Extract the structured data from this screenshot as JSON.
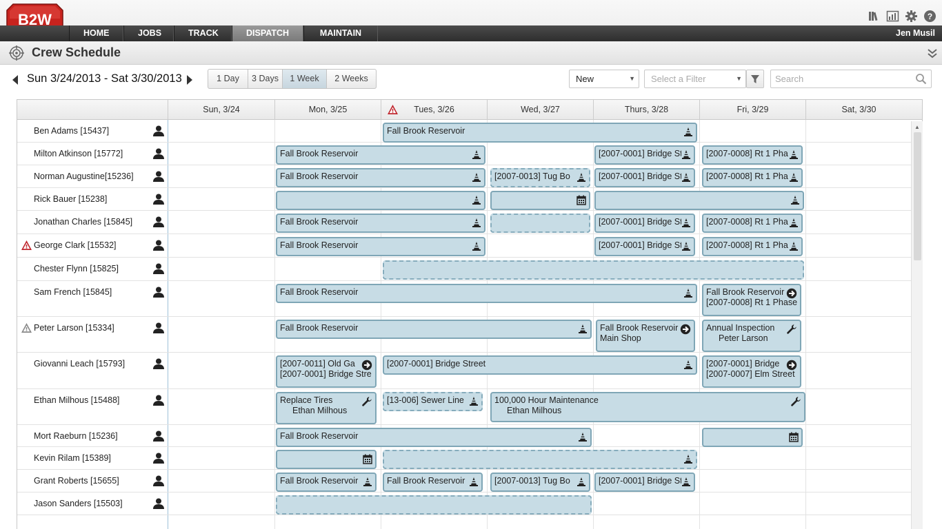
{
  "app": {
    "logo_text": "B2W",
    "nav_tabs": [
      {
        "label": "HOME"
      },
      {
        "label": "JOBS"
      },
      {
        "label": "TRACK"
      },
      {
        "label": "DISPATCH"
      },
      {
        "label": "MAINTAIN"
      }
    ],
    "active_tab": "DISPATCH",
    "user_name": "Jen Musil",
    "top_icons": [
      "library-icon",
      "chart-icon",
      "gear-icon",
      "help-icon"
    ]
  },
  "page": {
    "title": "Crew Schedule"
  },
  "controls": {
    "date_range": "Sun 3/24/2013 - Sat 3/30/2013",
    "view_options": [
      "1 Day",
      "3 Days",
      "1 Week",
      "2 Weeks"
    ],
    "selected_view": "1 Week",
    "status_select": "New",
    "filter_placeholder": "Select a Filter",
    "search_placeholder": "Search"
  },
  "columns": [
    "Sun, 3/24",
    "Mon, 3/25",
    "Tues, 3/26",
    "Wed, 3/27",
    "Thurs, 3/28",
    "Fri, 3/29",
    "Sat, 3/30"
  ],
  "column_warning": "Tues, 3/26",
  "colors": {
    "job_fill": "#c7dce5",
    "job_border": "#7fa6b6",
    "nav_bg": "#3a3a3a",
    "warning_red": "#c0262d",
    "logo_red": "#c8231e"
  },
  "crew": [
    {
      "name": "Ben Adams [15437]",
      "warning": "none",
      "jobs": [
        {
          "text": "Fall Brook Reservoir",
          "icon": "cone-icon"
        },
        {
          "text": "",
          "icon": "calendar-icon"
        }
      ]
    },
    {
      "name": "Milton Atkinson [15772]",
      "warning": "none",
      "jobs": [
        {
          "text": "Fall Brook Reservoir",
          "icon": "cone-icon"
        },
        {
          "text": "[2007-0001] Bridge St",
          "icon": "cone-icon"
        },
        {
          "text": "[2007-0008] Rt 1 Pha",
          "icon": "cone-icon"
        }
      ]
    },
    {
      "name": "Norman Augustine[15236]",
      "warning": "none",
      "jobs": [
        {
          "text": "Fall Brook Reservoir",
          "icon": "cone-icon"
        },
        {
          "text": "[2007-0013] Tug Bo",
          "icon": "cone-icon"
        },
        {
          "text": "[2007-0001] Bridge St",
          "icon": "cone-icon"
        },
        {
          "text": "[2007-0008] Rt 1 Pha",
          "icon": "cone-icon"
        }
      ]
    },
    {
      "name": "Rick Bauer [15238]",
      "warning": "none",
      "jobs": [
        {
          "text": "",
          "icon": "cone-icon"
        },
        {
          "text": "",
          "icon": "calendar-icon"
        },
        {
          "text": "",
          "icon": "cone-icon"
        }
      ]
    },
    {
      "name": "Jonathan Charles [15845]",
      "warning": "none",
      "jobs": [
        {
          "text": "Fall Brook Reservoir",
          "icon": "cone-icon"
        },
        {
          "text": "",
          "icon": ""
        },
        {
          "text": "[2007-0001] Bridge St",
          "icon": "cone-icon"
        },
        {
          "text": "[2007-0008] Rt 1 Pha",
          "icon": "cone-icon"
        }
      ]
    },
    {
      "name": "George Clark [15532]",
      "warning": "red",
      "jobs": [
        {
          "text": "Fall Brook Reservoir",
          "icon": "cone-icon"
        },
        {
          "text": "[2007-0001] Bridge St",
          "icon": "cone-icon"
        },
        {
          "text": "[2007-0008] Rt 1 Pha",
          "icon": "cone-icon"
        }
      ]
    },
    {
      "name": "Chester Flynn [15825]",
      "warning": "none",
      "jobs": [
        {
          "text": "",
          "icon": ""
        }
      ]
    },
    {
      "name": "Sam French [15845]",
      "warning": "none",
      "jobs": [
        {
          "text": "Fall Brook Reservoir",
          "icon": "cone-icon"
        },
        {
          "text": "Fall Brook Reservoir",
          "line2": "[2007-0008] Rt 1 Phase",
          "icon": "arrow-right-icon"
        }
      ]
    },
    {
      "name": "Peter Larson [15334]",
      "warning": "grey",
      "jobs": [
        {
          "text": "Fall Brook Reservoir",
          "icon": "cone-icon"
        },
        {
          "text": "Fall Brook Reservoir",
          "line2": "Main Shop",
          "icon": "arrow-right-icon"
        },
        {
          "text": "Annual Inspection",
          "line2": "Peter Larson",
          "icon": "wrench-icon"
        }
      ]
    },
    {
      "name": "Giovanni Leach [15793]",
      "warning": "none",
      "jobs": [
        {
          "text": "[2007-0011] Old Ga",
          "line2": "[2007-0001] Bridge Stre",
          "icon": "arrow-right-icon"
        },
        {
          "text": "[2007-0001] Bridge Street",
          "icon": "cone-icon"
        },
        {
          "text": "[2007-0001] Bridge",
          "line2": "[2007-0007] Elm Street",
          "icon": "arrow-right-icon"
        }
      ]
    },
    {
      "name": "Ethan Milhous [15488]",
      "warning": "none",
      "jobs": [
        {
          "text": "Replace Tires",
          "line2": "Ethan Milhous",
          "icon": "wrench-icon"
        },
        {
          "text": "[13-006] Sewer Line",
          "icon": "cone-icon"
        },
        {
          "text": "100,000 Hour Maintenance",
          "line2": "Ethan Milhous",
          "icon": "wrench-icon"
        }
      ]
    },
    {
      "name": "Mort Raeburn [15236]",
      "warning": "none",
      "jobs": [
        {
          "text": "Fall Brook Reservoir",
          "icon": "cone-icon"
        },
        {
          "text": "",
          "icon": "calendar-icon"
        }
      ]
    },
    {
      "name": "Kevin Rilam [15389]",
      "warning": "none",
      "jobs": [
        {
          "text": "",
          "icon": "calendar-icon"
        },
        {
          "text": "",
          "icon": "cone-icon"
        }
      ]
    },
    {
      "name": "Grant Roberts [15655]",
      "warning": "none",
      "jobs": [
        {
          "text": "Fall Brook Reservoir",
          "icon": "cone-icon"
        },
        {
          "text": "Fall Brook Reservoir",
          "icon": "cone-icon"
        },
        {
          "text": "[2007-0013] Tug Bo",
          "icon": "cone-icon"
        },
        {
          "text": "[2007-0001] Bridge St",
          "icon": "cone-icon"
        }
      ]
    },
    {
      "name": "Jason Sanders [15503]",
      "warning": "none",
      "jobs": [
        {
          "text": "",
          "icon": ""
        }
      ]
    }
  ]
}
